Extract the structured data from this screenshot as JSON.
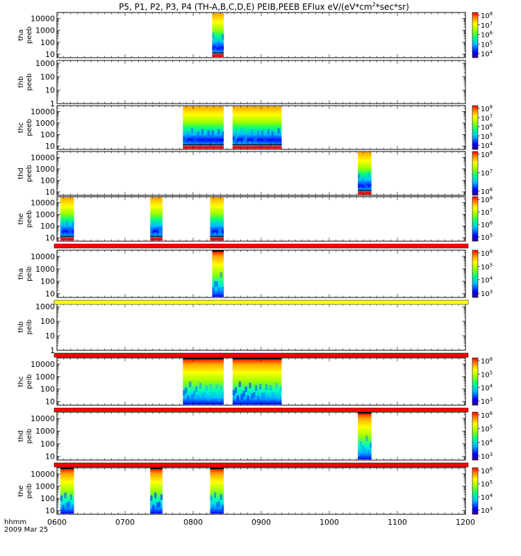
{
  "chart_data": {
    "type": "heatmap",
    "title_parts": {
      "prefix": "P5, P1, P2, P3, P4 (TH-A,B,C,D,E) PEIB,PEEB EFlux eV/(eV*cm",
      "sup": "2",
      "suffix": "*sec*sr)"
    },
    "x_ticks": [
      "0600",
      "0700",
      "0800",
      "0900",
      "1000",
      "1100",
      "1200"
    ],
    "x_range": [
      600,
      1200
    ],
    "x_unit_label": "hhmm",
    "date_label": "2009 Mar 25",
    "panels": [
      {
        "id": "tha-peeb",
        "ylabel": [
          "tha",
          "peeb"
        ],
        "yticks": [
          "10",
          "100",
          "1000",
          "10000"
        ],
        "ylog": [
          0.7,
          4.5
        ],
        "cb": [
          "10",
          "10",
          "10",
          "10",
          "10"
        ],
        "cb_exp": [
          "4",
          "5",
          "6",
          "7",
          "8"
        ],
        "blocks": [
          [
            828,
            845
          ]
        ],
        "type": "e"
      },
      {
        "id": "thb-peeb",
        "ylabel": [
          "thb",
          "peeb"
        ],
        "yticks": [
          "1",
          "10",
          "100",
          "1000"
        ],
        "ylog": [
          0,
          3.2
        ],
        "cb": [],
        "cb_exp": [],
        "blocks": [],
        "type": "e"
      },
      {
        "id": "thc-peeb",
        "ylabel": [
          "thc",
          "peeb"
        ],
        "yticks": [
          "10",
          "100",
          "1000",
          "10000"
        ],
        "ylog": [
          0.7,
          4.5
        ],
        "cb": [
          "10",
          "10",
          "10",
          "10",
          "10"
        ],
        "cb_exp": [
          "4",
          "5",
          "6",
          "7",
          "8"
        ],
        "blocks": [
          [
            785,
            845
          ],
          [
            858,
            930
          ]
        ],
        "type": "e"
      },
      {
        "id": "thd-peeb",
        "ylabel": [
          "thd",
          "peeb"
        ],
        "yticks": [
          "10",
          "100",
          "1000",
          "10000"
        ],
        "ylog": [
          0.7,
          4.5
        ],
        "cb": [
          "10",
          "10",
          "10"
        ],
        "cb_exp": [
          "6",
          "7",
          "8"
        ],
        "blocks": [
          [
            1042,
            1062
          ]
        ],
        "type": "e"
      },
      {
        "id": "the-peeb",
        "ylabel": [
          "the",
          "peeb"
        ],
        "yticks": [
          "10",
          "100",
          "1000",
          "10000"
        ],
        "ylog": [
          0.7,
          4.5
        ],
        "cb": [
          "10",
          "10",
          "10",
          "10"
        ],
        "cb_exp": [
          "5",
          "6",
          "7",
          "8"
        ],
        "blocks": [
          [
            605,
            625
          ],
          [
            737,
            755
          ],
          [
            825,
            845
          ]
        ],
        "type": "e"
      },
      {
        "id": "tha-peib",
        "ylabel": [
          "tha",
          "peib"
        ],
        "yticks": [
          "10",
          "100",
          "1000",
          "10000"
        ],
        "ylog": [
          0.7,
          4.5
        ],
        "cb": [
          "10",
          "10",
          "10",
          "10"
        ],
        "cb_exp": [
          "3",
          "4",
          "5",
          "6"
        ],
        "blocks": [
          [
            828,
            845
          ]
        ],
        "type": "i"
      },
      {
        "id": "thb-peib",
        "ylabel": [
          "thb",
          "peib"
        ],
        "yticks": [
          "1",
          "10",
          "100",
          "1000"
        ],
        "ylog": [
          0,
          3.2
        ],
        "cb": [],
        "cb_exp": [],
        "blocks": [],
        "type": "i"
      },
      {
        "id": "thc-peib",
        "ylabel": [
          "thc",
          "peib"
        ],
        "yticks": [
          "10",
          "100",
          "1000",
          "10000"
        ],
        "ylog": [
          0.7,
          4.5
        ],
        "cb": [
          "10",
          "10",
          "10",
          "10"
        ],
        "cb_exp": [
          "3",
          "4",
          "5",
          "6"
        ],
        "blocks": [
          [
            785,
            845
          ],
          [
            858,
            930
          ]
        ],
        "type": "i"
      },
      {
        "id": "thd-peib",
        "ylabel": [
          "thd",
          "peib"
        ],
        "yticks": [
          "10",
          "100",
          "1000",
          "10000"
        ],
        "ylog": [
          0.7,
          4.5
        ],
        "cb": [
          "10",
          "10",
          "10",
          "10"
        ],
        "cb_exp": [
          "3",
          "4",
          "5",
          "6"
        ],
        "blocks": [
          [
            1042,
            1062
          ]
        ],
        "type": "i"
      },
      {
        "id": "the-peib",
        "ylabel": [
          "the",
          "peib"
        ],
        "yticks": [
          "10",
          "100",
          "1000",
          "10000"
        ],
        "ylog": [
          0.7,
          4.5
        ],
        "cb": [
          "10",
          "10",
          "10",
          "10"
        ],
        "cb_exp": [
          "3",
          "4",
          "5",
          "6"
        ],
        "blocks": [
          [
            605,
            625
          ],
          [
            737,
            755
          ],
          [
            825,
            845
          ]
        ],
        "type": "i"
      }
    ],
    "status_bars": [
      {
        "after_panel": "the-peeb",
        "color": "#ff0000"
      },
      {
        "after_panel": "tha-peib",
        "color": "#ffff00"
      },
      {
        "after_panel": "thb-peib",
        "color": "#ff0000"
      },
      {
        "after_panel": "thc-peib",
        "color": "#ff0000"
      },
      {
        "after_panel": "thd-peib",
        "color": "#ff0000"
      }
    ]
  }
}
